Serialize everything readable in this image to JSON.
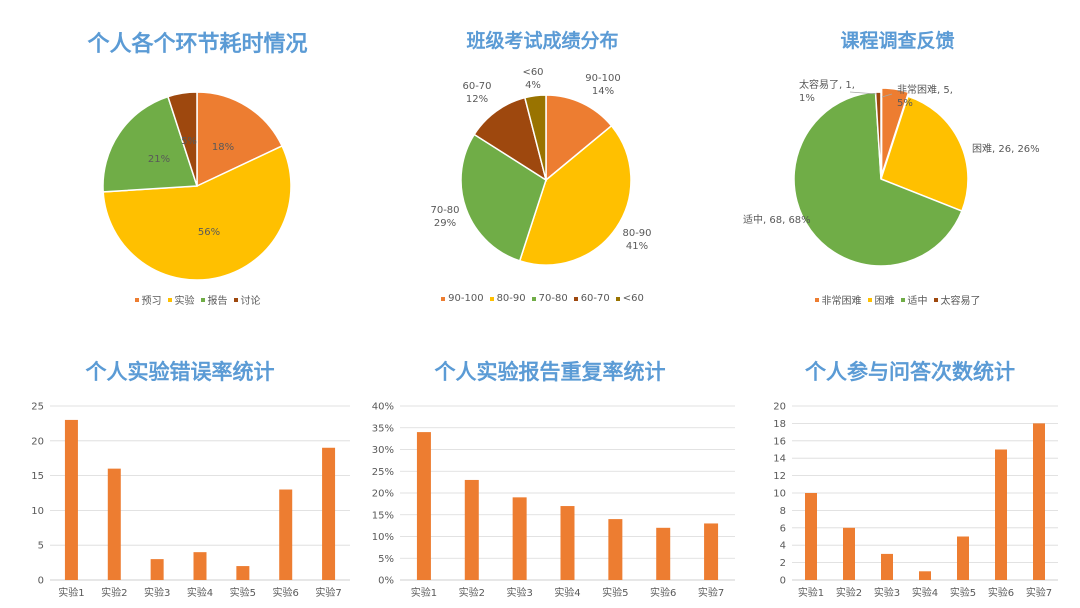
{
  "chart_data": [
    {
      "type": "pie",
      "title": "个人各个环节耗时情况",
      "categories": [
        "预习",
        "实验",
        "报告",
        "讨论"
      ],
      "values": [
        18,
        56,
        21,
        5
      ],
      "data_labels": [
        "18%",
        "56%",
        "21%",
        "5%"
      ],
      "colors": [
        "#ed7d31",
        "#ffc000",
        "#70ad47",
        "#9e480e"
      ],
      "legend": "bottom"
    },
    {
      "type": "pie",
      "title": "班级考试成绩分布",
      "categories": [
        "90-100",
        "80-90",
        "70-80",
        "60-70",
        "<60"
      ],
      "values": [
        14,
        41,
        29,
        12,
        4
      ],
      "data_labels": [
        [
          "90-100",
          "14%"
        ],
        [
          "80-90",
          "41%"
        ],
        [
          "70-80",
          "29%"
        ],
        [
          "60-70",
          "12%"
        ],
        [
          "<60",
          "4%"
        ]
      ],
      "colors": [
        "#ed7d31",
        "#ffc000",
        "#70ad47",
        "#9e480e",
        "#997300"
      ],
      "legend": "bottom"
    },
    {
      "type": "pie",
      "title": "课程调查反馈",
      "categories": [
        "非常困难",
        "困难",
        "适中",
        "太容易了"
      ],
      "values": [
        5,
        26,
        68,
        1
      ],
      "data_labels": [
        [
          "非常困难, 5,",
          "5%"
        ],
        [
          "困难, 26, 26%"
        ],
        [
          "适中, 68, 68%"
        ],
        [
          "太容易了, 1,",
          "1%"
        ]
      ],
      "colors": [
        "#ed7d31",
        "#ffc000",
        "#70ad47",
        "#9e480e"
      ],
      "legend": "bottom"
    },
    {
      "type": "bar",
      "title": "个人实验错误率统计",
      "categories": [
        "实验1",
        "实验2",
        "实验3",
        "实验4",
        "实验5",
        "实验6",
        "实验7"
      ],
      "values": [
        23,
        16,
        3,
        4,
        2,
        13,
        19
      ],
      "ylim": [
        0,
        25
      ],
      "yticks": [
        "0",
        "5",
        "10",
        "15",
        "20",
        "25"
      ],
      "color": "#ed7d31",
      "grid": true
    },
    {
      "type": "bar",
      "title": "个人实验报告重复率统计",
      "categories": [
        "实验1",
        "实验2",
        "实验3",
        "实验4",
        "实验5",
        "实验6",
        "实验7"
      ],
      "values": [
        34,
        23,
        19,
        17,
        14,
        12,
        13
      ],
      "ylim": [
        0,
        40
      ],
      "yticks": [
        "0%",
        "5%",
        "10%",
        "15%",
        "20%",
        "25%",
        "30%",
        "35%",
        "40%"
      ],
      "color": "#ed7d31",
      "grid": true
    },
    {
      "type": "bar",
      "title": "个人参与问答次数统计",
      "categories": [
        "实验1",
        "实验2",
        "实验3",
        "实验4",
        "实验5",
        "实验6",
        "实验7"
      ],
      "values": [
        10,
        6,
        3,
        1,
        5,
        15,
        18
      ],
      "ylim": [
        0,
        20
      ],
      "yticks": [
        "0",
        "2",
        "4",
        "6",
        "8",
        "10",
        "12",
        "14",
        "16",
        "18",
        "20"
      ],
      "color": "#ed7d31",
      "grid": true
    }
  ]
}
